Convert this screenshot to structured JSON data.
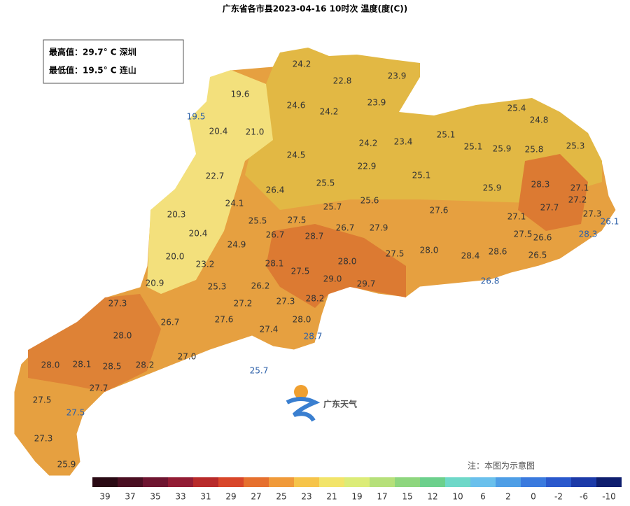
{
  "title": "广东省各市县2023-04-16 10时次 温度(度(C))",
  "info_box": [
    "最高值：29.7° C 深圳",
    "最低值：19.5° C 连山"
  ],
  "labels": [
    "24.2",
    "22.8",
    "23.9",
    "19.6",
    "24.6",
    "24.2",
    "23.9",
    "19.5",
    "20.4",
    "21.0",
    "25.4",
    "24.8",
    "25.1",
    "24.2",
    "23.4",
    "25.1",
    "25.9",
    "25.8",
    "25.3",
    "24.5",
    "22.9",
    "25.1",
    "22.7",
    "26.4",
    "25.5",
    "25.9",
    "28.3",
    "27.1",
    "24.1",
    "25.7",
    "25.6",
    "27.6",
    "27.7",
    "27.2",
    "27.3",
    "26.1",
    "20.3",
    "25.5",
    "27.5",
    "26.7",
    "27.9",
    "27.1",
    "28.3",
    "20.4",
    "26.7",
    "28.7",
    "24.9",
    "27.5",
    "26.6",
    "20.0",
    "23.2",
    "28.1",
    "28.0",
    "27.5",
    "28.0",
    "28.4",
    "28.6",
    "26.5",
    "27.5",
    "29.0",
    "29.7",
    "26.8",
    "20.9",
    "25.3",
    "26.2",
    "27.3",
    "27.2",
    "27.3",
    "28.2",
    "26.7",
    "27.6",
    "28.0",
    "27.4",
    "28.7",
    "28.0",
    "27.0",
    "28.0",
    "28.1",
    "28.5",
    "28.2",
    "25.7",
    "27.7",
    "27.5",
    "27.5",
    "27.3",
    "25.9"
  ],
  "logo": "广东天气",
  "note": "注：本图为示意图",
  "legend_ticks": [
    39,
    37,
    35,
    33,
    31,
    29,
    27,
    25,
    23,
    21,
    19,
    17,
    15,
    12,
    10,
    6,
    2,
    0,
    -2,
    -6,
    -10
  ]
}
